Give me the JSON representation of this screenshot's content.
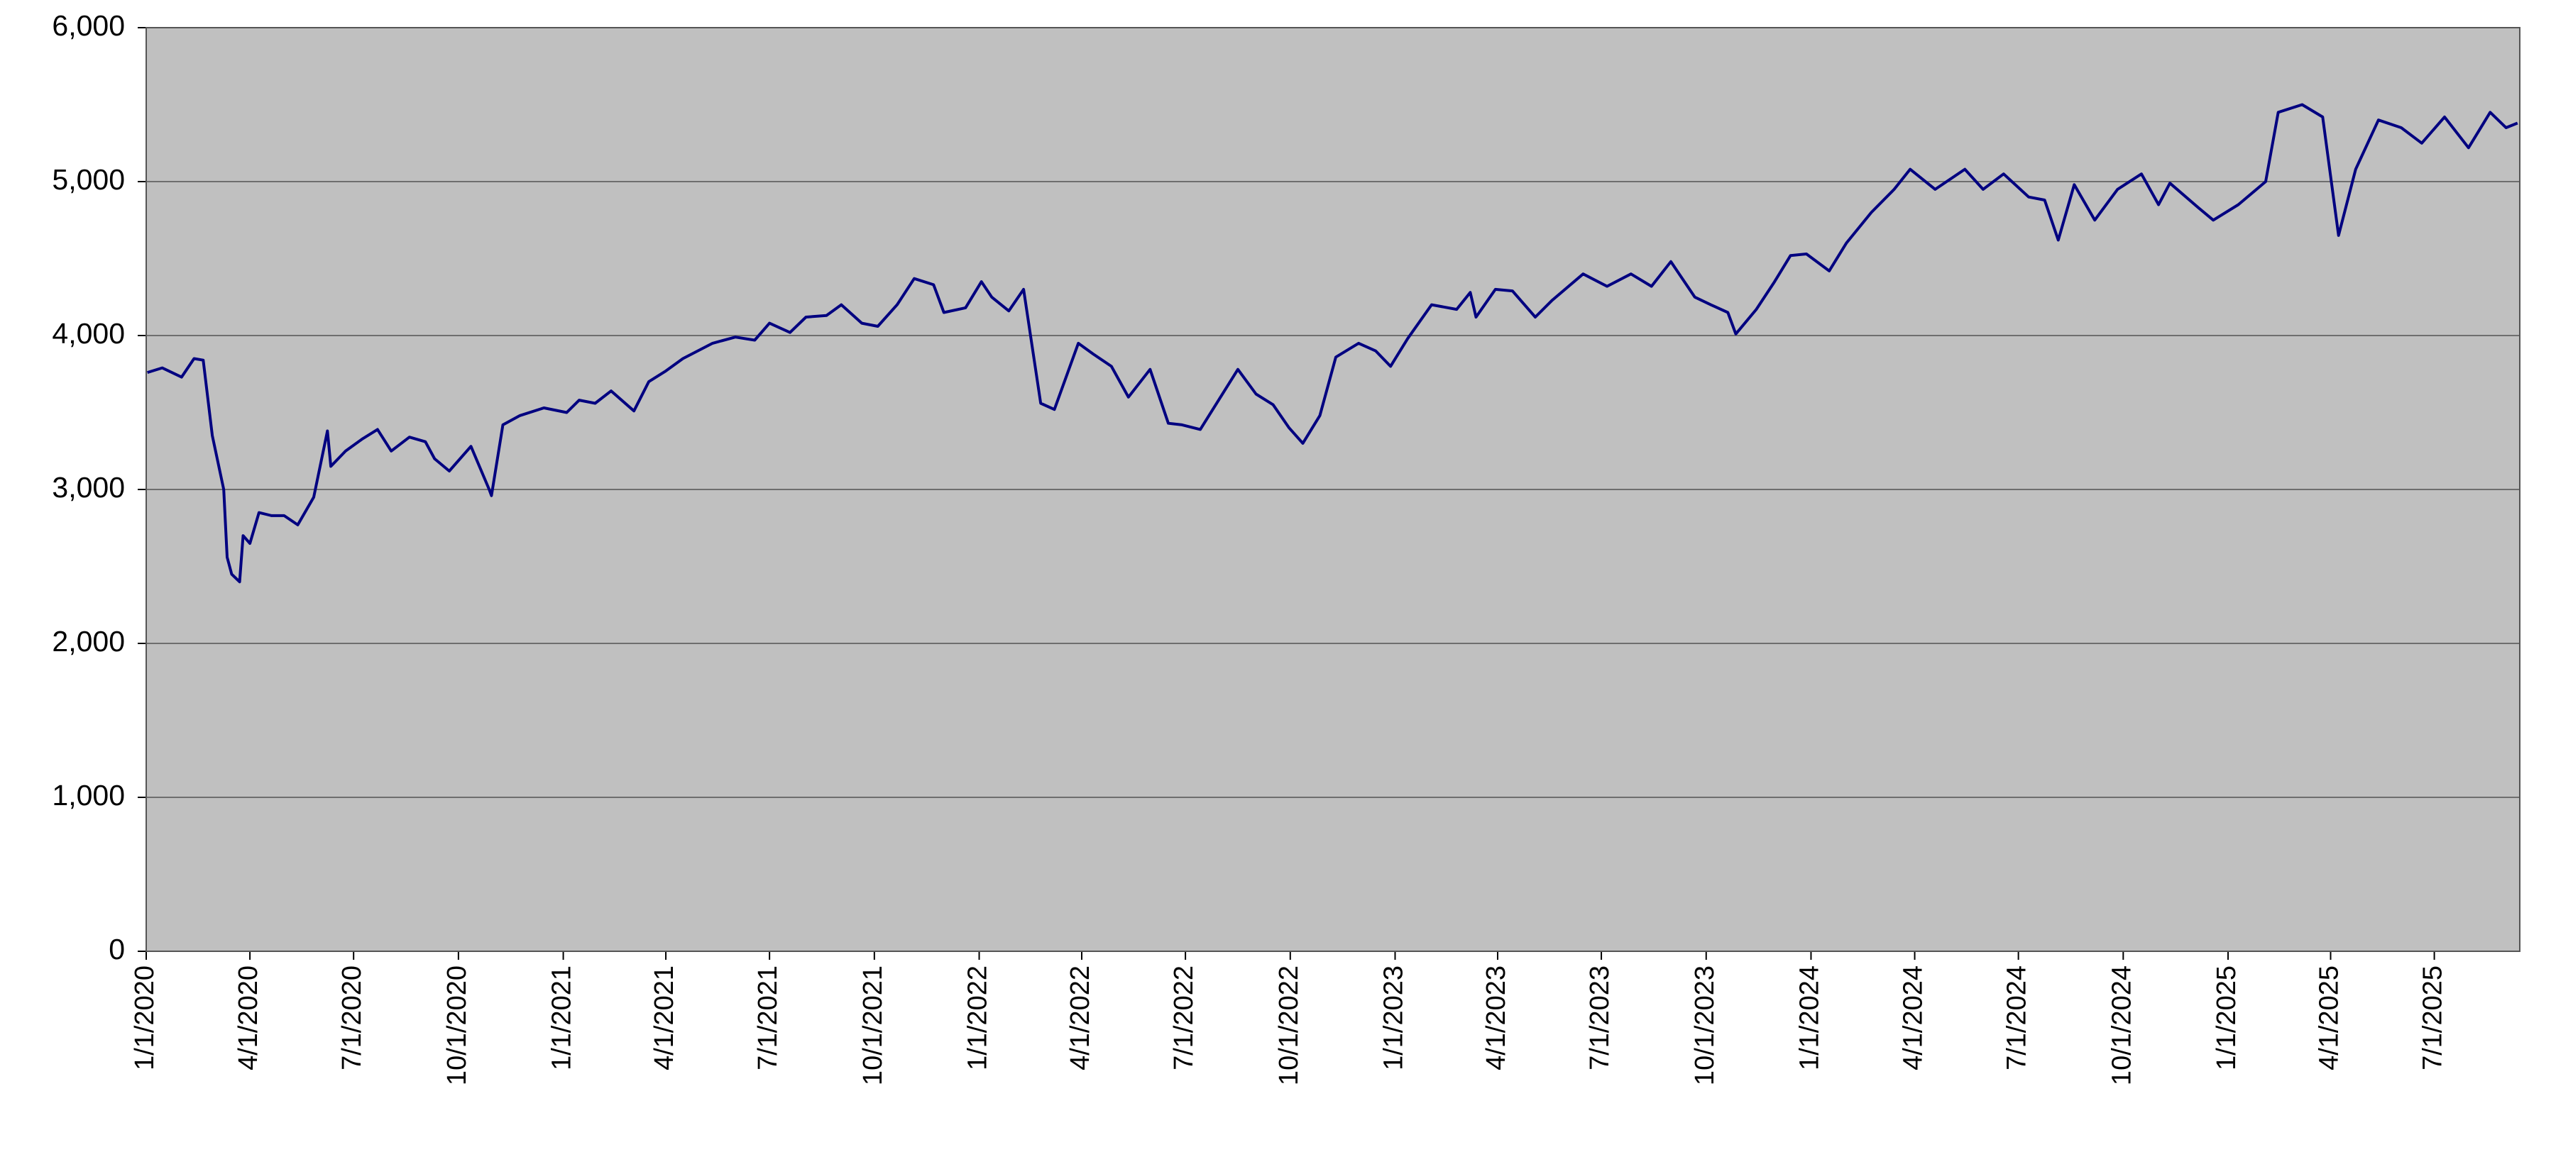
{
  "chart_data": {
    "type": "line",
    "x": [
      "1/2/2020",
      "1/15/2020",
      "2/1/2020",
      "2/12/2020",
      "2/20/2020",
      "2/28/2020",
      "3/9/2020",
      "3/12/2020",
      "3/16/2020",
      "3/23/2020",
      "3/26/2020",
      "4/1/2020",
      "4/9/2020",
      "4/20/2020",
      "5/1/2020",
      "5/13/2020",
      "5/27/2020",
      "6/8/2020",
      "6/11/2020",
      "6/24/2020",
      "7/9/2020",
      "7/22/2020",
      "8/3/2020",
      "8/19/2020",
      "9/2/2020",
      "9/10/2020",
      "9/23/2020",
      "10/12/2020",
      "10/28/2020",
      "10/30/2020",
      "11/9/2020",
      "11/24/2020",
      "12/15/2020",
      "1/4/2021",
      "1/15/2021",
      "1/29/2021",
      "2/12/2021",
      "3/4/2021",
      "3/17/2021",
      "4/1/2021",
      "4/16/2021",
      "5/12/2021",
      "6/1/2021",
      "6/18/2021",
      "7/1/2021",
      "7/19/2021",
      "8/2/2021",
      "8/20/2021",
      "9/2/2021",
      "9/20/2021",
      "10/4/2021",
      "10/21/2021",
      "11/5/2021",
      "11/22/2021",
      "12/1/2021",
      "12/20/2021",
      "1/3/2022",
      "1/12/2022",
      "1/27/2022",
      "2/9/2022",
      "2/24/2022",
      "3/8/2022",
      "3/29/2022",
      "4/11/2022",
      "4/27/2022",
      "5/12/2022",
      "5/31/2022",
      "6/16/2022",
      "6/28/2022",
      "7/14/2022",
      "8/16/2022",
      "9/1/2022",
      "9/16/2022",
      "9/30/2022",
      "10/12/2022",
      "10/27/2022",
      "11/10/2022",
      "11/30/2022",
      "12/15/2022",
      "12/28/2022",
      "1/12/2023",
      "2/2/2023",
      "2/24/2023",
      "3/8/2023",
      "3/13/2023",
      "3/30/2023",
      "4/14/2023",
      "5/4/2023",
      "5/19/2023",
      "6/15/2023",
      "7/6/2023",
      "7/27/2023",
      "8/14/2023",
      "8/31/2023",
      "9/21/2023",
      "10/5/2023",
      "10/20/2023",
      "10/27/2023",
      "11/14/2023",
      "11/30/2023",
      "12/14/2023",
      "12/28/2023",
      "1/17/2024",
      "2/1/2024",
      "2/23/2024",
      "3/14/2024",
      "3/28/2024",
      "4/19/2024",
      "5/15/2024",
      "5/31/2024",
      "6/18/2024",
      "7/10/2024",
      "7/24/2024",
      "8/5/2024",
      "8/19/2024",
      "9/6/2024",
      "9/26/2024",
      "10/17/2024",
      "11/1/2024",
      "11/11/2024",
      "12/6/2024",
      "12/19/2024",
      "1/10/2025",
      "2/3/2025",
      "2/14/2025",
      "3/7/2025",
      "3/25/2025",
      "4/8/2025",
      "4/23/2025",
      "5/13/2025",
      "6/2/2025",
      "6/20/2025",
      "7/10/2025",
      "7/31/2025",
      "8/19/2025",
      "9/2/2025",
      "9/12/2025"
    ],
    "series": [
      {
        "color": "#000080",
        "values": [
          3760,
          3790,
          3730,
          3850,
          3840,
          3350,
          3000,
          2560,
          2450,
          2400,
          2700,
          2650,
          2850,
          2830,
          2830,
          2770,
          2950,
          3380,
          3150,
          3250,
          3330,
          3390,
          3250,
          3340,
          3310,
          3200,
          3120,
          3280,
          3000,
          2960,
          3420,
          3480,
          3530,
          3500,
          3580,
          3560,
          3640,
          3510,
          3700,
          3770,
          3850,
          3950,
          3990,
          3970,
          4080,
          4020,
          4120,
          4130,
          4200,
          4080,
          4060,
          4200,
          4370,
          4330,
          4150,
          4180,
          4350,
          4250,
          4160,
          4300,
          3560,
          3520,
          3950,
          3880,
          3800,
          3600,
          3780,
          3430,
          3420,
          3390,
          3780,
          3620,
          3550,
          3400,
          3300,
          3480,
          3860,
          3950,
          3900,
          3800,
          3980,
          4200,
          4170,
          4280,
          4120,
          4300,
          4290,
          4120,
          4230,
          4400,
          4320,
          4400,
          4320,
          4480,
          4250,
          4200,
          4150,
          4010,
          4170,
          4350,
          4520,
          4530,
          4420,
          4600,
          4800,
          4950,
          5080,
          4950,
          5080,
          4950,
          5050,
          4900,
          4880,
          4620,
          4980,
          4750,
          4950,
          5050,
          4850,
          4990,
          4830,
          4750,
          4850,
          5000,
          5450,
          5500,
          5420,
          4650,
          5080,
          5400,
          5350,
          5250,
          5420,
          5220,
          5450,
          5350,
          5380
        ]
      }
    ],
    "xlim": [
      "1/1/2020",
      "9/14/2025"
    ],
    "xticks": [
      "1/1/2020",
      "4/1/2020",
      "7/1/2020",
      "10/1/2020",
      "1/1/2021",
      "4/1/2021",
      "7/1/2021",
      "10/1/2021",
      "1/1/2022",
      "4/1/2022",
      "7/1/2022",
      "10/1/2022",
      "1/1/2023",
      "4/1/2023",
      "7/1/2023",
      "10/1/2023",
      "1/1/2024",
      "4/1/2024",
      "7/1/2024",
      "10/1/2024",
      "1/1/2025",
      "4/1/2025",
      "7/1/2025"
    ],
    "ylim": [
      0,
      6000
    ],
    "yticks": [
      0,
      {
        "value": 1000,
        "label": "1,000"
      },
      {
        "value": 2000,
        "label": "2,000"
      },
      {
        "value": 3000,
        "label": "3,000"
      },
      {
        "value": 4000,
        "label": "4,000"
      },
      {
        "value": 5000,
        "label": "5,000"
      },
      {
        "value": 6000,
        "label": "6,000"
      }
    ],
    "grid": true,
    "background": "#c0c0c0"
  }
}
